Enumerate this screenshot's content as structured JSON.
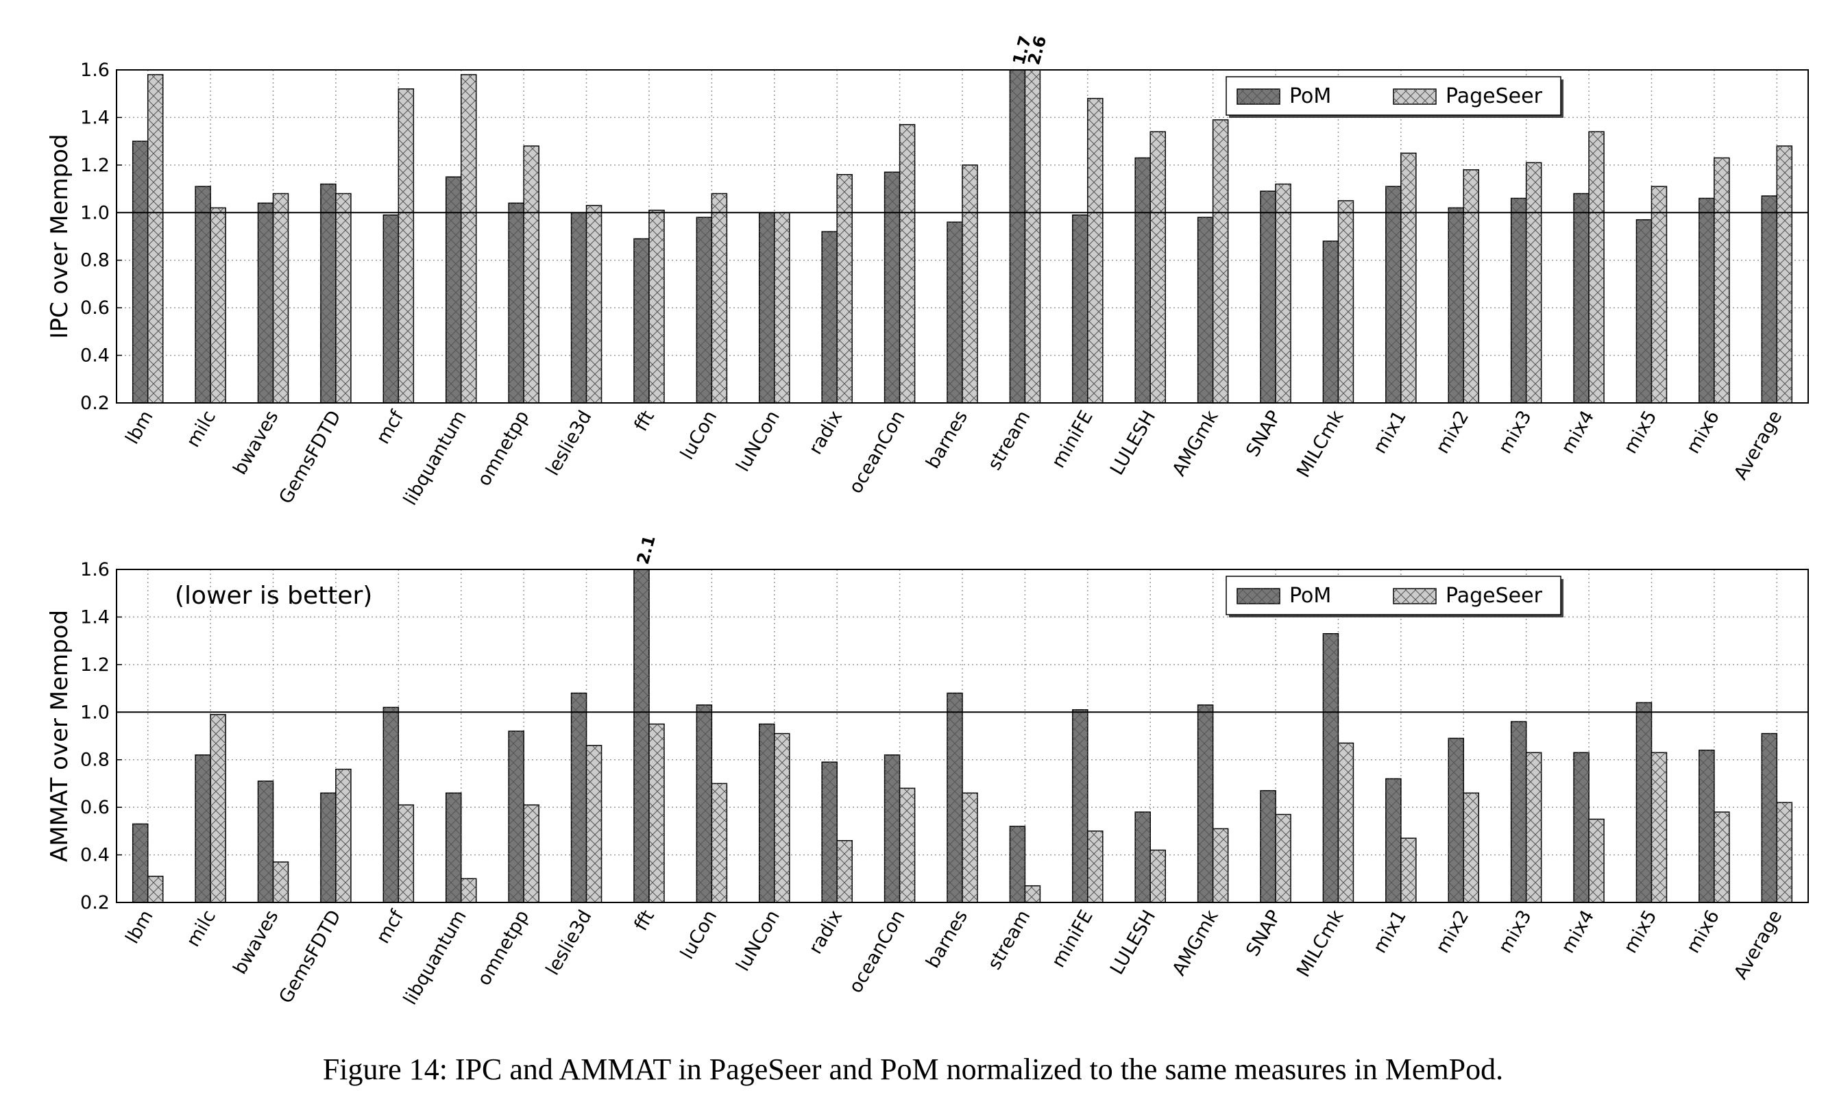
{
  "chart_data": [
    {
      "type": "bar",
      "ylabel": "IPC over Mempod",
      "categories": [
        "lbm",
        "milc",
        "bwaves",
        "GemsFDTD",
        "mcf",
        "libquantum",
        "omnetpp",
        "leslie3d",
        "fft",
        "luCon",
        "luNCon",
        "radix",
        "oceanCon",
        "barnes",
        "stream",
        "miniFE",
        "LULESH",
        "AMGmk",
        "SNAP",
        "MILCmk",
        "mix1",
        "mix2",
        "mix3",
        "mix4",
        "mix5",
        "mix6",
        "Average"
      ],
      "series": [
        {
          "name": "PoM",
          "color": "#777777",
          "values": [
            1.3,
            1.11,
            1.04,
            1.12,
            0.99,
            1.15,
            1.04,
            1.0,
            0.89,
            0.98,
            1.0,
            0.92,
            1.17,
            0.96,
            1.7,
            0.99,
            1.23,
            0.98,
            1.09,
            0.88,
            1.11,
            1.02,
            1.06,
            1.08,
            0.97,
            1.06,
            1.07
          ],
          "value_labels": [
            null,
            null,
            null,
            null,
            null,
            null,
            null,
            null,
            null,
            null,
            null,
            null,
            null,
            null,
            "1.7",
            null,
            null,
            null,
            null,
            null,
            null,
            null,
            null,
            null,
            null,
            null,
            null
          ]
        },
        {
          "name": "PageSeer",
          "color": "#cccccc",
          "values": [
            1.58,
            1.02,
            1.08,
            1.08,
            1.52,
            1.58,
            1.28,
            1.03,
            1.01,
            1.08,
            1.0,
            1.16,
            1.37,
            1.2,
            2.6,
            1.48,
            1.34,
            1.39,
            1.12,
            1.05,
            1.25,
            1.18,
            1.21,
            1.34,
            1.11,
            1.23,
            1.28
          ],
          "value_labels": [
            null,
            null,
            null,
            null,
            null,
            null,
            null,
            null,
            null,
            null,
            null,
            null,
            null,
            null,
            "2.6",
            null,
            null,
            null,
            null,
            null,
            null,
            null,
            null,
            null,
            null,
            null,
            null
          ]
        }
      ],
      "ylim": [
        0.2,
        1.6
      ],
      "yticks": [
        0.2,
        0.4,
        0.6,
        0.8,
        {
          "value": 1,
          "label": "1.0"
        },
        1.2,
        1.4,
        1.6
      ],
      "reference_line": 1,
      "grid": true,
      "legend": "upper right"
    },
    {
      "type": "bar",
      "ylabel": "AMMAT over Mempod",
      "annotation": "(lower is better)",
      "categories": [
        "lbm",
        "milc",
        "bwaves",
        "GemsFDTD",
        "mcf",
        "libquantum",
        "omnetpp",
        "leslie3d",
        "fft",
        "luCon",
        "luNCon",
        "radix",
        "oceanCon",
        "barnes",
        "stream",
        "miniFE",
        "LULESH",
        "AMGmk",
        "SNAP",
        "MILCmk",
        "mix1",
        "mix2",
        "mix3",
        "mix4",
        "mix5",
        "mix6",
        "Average"
      ],
      "series": [
        {
          "name": "PoM",
          "color": "#777777",
          "values": [
            0.53,
            0.82,
            0.71,
            0.66,
            1.02,
            0.66,
            0.92,
            1.08,
            2.1,
            1.03,
            0.95,
            0.79,
            0.82,
            1.08,
            0.52,
            1.01,
            0.58,
            1.03,
            0.67,
            1.33,
            0.72,
            0.89,
            0.96,
            0.83,
            1.04,
            0.84,
            0.91
          ],
          "value_labels": [
            null,
            null,
            null,
            null,
            null,
            null,
            null,
            null,
            "2.1",
            null,
            null,
            null,
            null,
            null,
            null,
            null,
            null,
            null,
            null,
            null,
            null,
            null,
            null,
            null,
            null,
            null,
            null
          ]
        },
        {
          "name": "PageSeer",
          "color": "#cccccc",
          "values": [
            0.31,
            0.99,
            0.37,
            0.76,
            0.61,
            0.3,
            0.61,
            0.86,
            0.95,
            0.7,
            0.91,
            0.46,
            0.68,
            0.66,
            0.27,
            0.5,
            0.42,
            0.51,
            0.57,
            0.87,
            0.47,
            0.66,
            0.83,
            0.55,
            0.83,
            0.58,
            0.62
          ]
        }
      ],
      "ylim": [
        0.2,
        1.6
      ],
      "yticks": [
        0.2,
        0.4,
        0.6,
        0.8,
        {
          "value": 1,
          "label": "1.0"
        },
        1.2,
        1.4,
        1.6
      ],
      "reference_line": 1,
      "grid": true,
      "legend": "upper right"
    }
  ],
  "caption": "Figure 14: IPC and AMMAT in PageSeer and PoM normalized to the same measures in MemPod."
}
